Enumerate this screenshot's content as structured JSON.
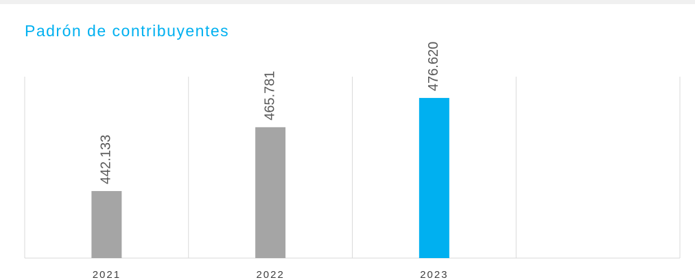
{
  "chart_data": {
    "type": "bar",
    "title": "Padrón de contribuyentes",
    "categories": [
      "2021",
      "2022",
      "2023",
      null
    ],
    "values": [
      442133,
      465781,
      476620,
      null
    ],
    "value_labels": [
      "442.133",
      "465.781",
      "476.620",
      null
    ],
    "colors": [
      "#a5a5a5",
      "#a5a5a5",
      "#00b0f0",
      null
    ],
    "ylim": [
      417300,
      484500
    ],
    "grid": true
  }
}
